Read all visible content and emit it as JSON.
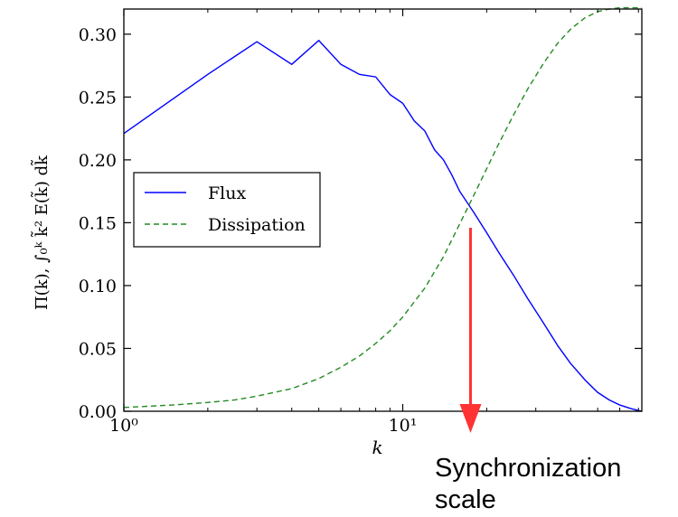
{
  "chart_data": {
    "type": "line",
    "xscale": "log",
    "xlim": [
      1,
      72
    ],
    "ylim": [
      0,
      0.32
    ],
    "xlabel": "k",
    "ylabel": "Π(k), ∫₀ᵏ k̃² E(k̃) dk̃",
    "x_ticks": [
      {
        "value": 1,
        "label": "10⁰"
      },
      {
        "value": 10,
        "label": "10¹"
      }
    ],
    "y_ticks": [
      {
        "value": 0.0,
        "label": "0.00"
      },
      {
        "value": 0.05,
        "label": "0.05"
      },
      {
        "value": 0.1,
        "label": "0.10"
      },
      {
        "value": 0.15,
        "label": "0.15"
      },
      {
        "value": 0.2,
        "label": "0.20"
      },
      {
        "value": 0.25,
        "label": "0.25"
      },
      {
        "value": 0.3,
        "label": "0.30"
      }
    ],
    "legend": {
      "placement": "center-left"
    },
    "series": [
      {
        "name": "Flux",
        "color": "#0000ff",
        "dash": "solid",
        "points": [
          [
            1.0,
            0.221
          ],
          [
            2.0,
            0.268
          ],
          [
            3.0,
            0.294
          ],
          [
            4.0,
            0.276
          ],
          [
            5.0,
            0.295
          ],
          [
            6.0,
            0.276
          ],
          [
            7.0,
            0.268
          ],
          [
            8.0,
            0.266
          ],
          [
            9.0,
            0.252
          ],
          [
            10.0,
            0.245
          ],
          [
            11.0,
            0.231
          ],
          [
            12.0,
            0.223
          ],
          [
            13.0,
            0.208
          ],
          [
            14.0,
            0.2
          ],
          [
            15.0,
            0.188
          ],
          [
            16.0,
            0.175
          ],
          [
            18.0,
            0.158
          ],
          [
            20.0,
            0.142
          ],
          [
            22.0,
            0.127
          ],
          [
            25.0,
            0.108
          ],
          [
            28.0,
            0.09
          ],
          [
            32.0,
            0.07
          ],
          [
            36.0,
            0.052
          ],
          [
            40.0,
            0.038
          ],
          [
            45.0,
            0.025
          ],
          [
            50.0,
            0.015
          ],
          [
            55.0,
            0.009
          ],
          [
            60.0,
            0.005
          ],
          [
            66.0,
            0.002
          ],
          [
            72.0,
            0.0
          ]
        ]
      },
      {
        "name": "Dissipation",
        "color": "#228b22",
        "dash": "dashed",
        "points": [
          [
            1.0,
            0.003
          ],
          [
            1.5,
            0.005
          ],
          [
            2.0,
            0.007
          ],
          [
            2.5,
            0.009
          ],
          [
            3.0,
            0.012
          ],
          [
            4.0,
            0.018
          ],
          [
            5.0,
            0.026
          ],
          [
            6.0,
            0.035
          ],
          [
            7.0,
            0.044
          ],
          [
            8.0,
            0.054
          ],
          [
            9.0,
            0.064
          ],
          [
            10.0,
            0.075
          ],
          [
            12.0,
            0.098
          ],
          [
            14.0,
            0.123
          ],
          [
            16.0,
            0.149
          ],
          [
            18.0,
            0.172
          ],
          [
            20.0,
            0.193
          ],
          [
            22.0,
            0.212
          ],
          [
            25.0,
            0.236
          ],
          [
            28.0,
            0.256
          ],
          [
            32.0,
            0.277
          ],
          [
            36.0,
            0.293
          ],
          [
            40.0,
            0.304
          ],
          [
            45.0,
            0.313
          ],
          [
            50.0,
            0.318
          ],
          [
            55.0,
            0.32
          ],
          [
            60.0,
            0.321
          ],
          [
            72.0,
            0.321
          ]
        ]
      }
    ],
    "annotation": {
      "text_lines": [
        "Synchronization",
        "scale"
      ],
      "arrow_x": 17.5,
      "arrow_y_from": 0.146,
      "arrow_y_to": 0.0,
      "color": "#ff3333"
    }
  }
}
